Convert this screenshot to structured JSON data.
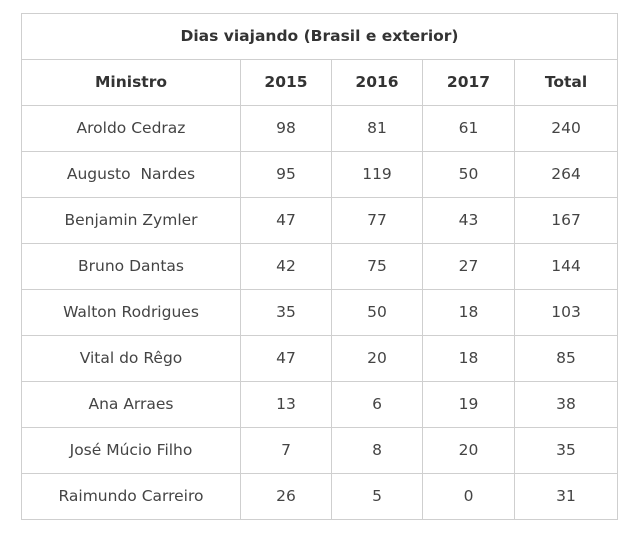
{
  "table": {
    "caption": "Dias viajando (Brasil e exterior)",
    "headers": [
      "Ministro",
      "2015",
      "2016",
      "2017",
      "Total"
    ],
    "rows": [
      [
        "Aroldo Cedraz",
        "98",
        "81",
        "61",
        "240"
      ],
      [
        "Augusto  Nardes",
        "95",
        "119",
        "50",
        "264"
      ],
      [
        "Benjamin Zymler",
        "47",
        "77",
        "43",
        "167"
      ],
      [
        "Bruno Dantas",
        "42",
        "75",
        "27",
        "144"
      ],
      [
        "Walton Rodrigues",
        "35",
        "50",
        "18",
        "103"
      ],
      [
        "Vital do Rêgo",
        "47",
        "20",
        "18",
        "85"
      ],
      [
        "Ana Arraes",
        "13",
        "6",
        "19",
        "38"
      ],
      [
        "José Múcio Filho",
        "7",
        "8",
        "20",
        "35"
      ],
      [
        "Raimundo Carreiro",
        "26",
        "5",
        "0",
        "31"
      ]
    ]
  }
}
